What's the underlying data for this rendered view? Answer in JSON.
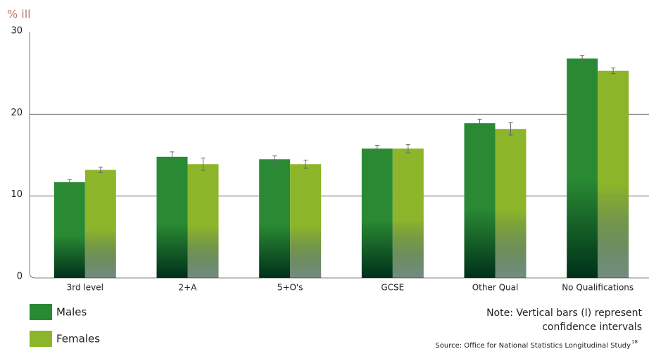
{
  "chart_data": {
    "type": "bar",
    "y_label": "% ill",
    "categories": [
      "3rd level",
      "2+A",
      "5+O's",
      "GCSE",
      "Other Qual",
      "No Qualifications"
    ],
    "series": [
      {
        "name": "Males",
        "color": "#2a8a34",
        "values": [
          11.7,
          14.8,
          14.5,
          15.8,
          18.9,
          26.8
        ],
        "errors": [
          0.3,
          0.6,
          0.4,
          0.4,
          0.5,
          0.4
        ]
      },
      {
        "name": "Females",
        "color": "#8db52a",
        "values": [
          13.2,
          13.9,
          13.9,
          15.8,
          18.2,
          25.3
        ],
        "errors": [
          0.35,
          0.75,
          0.5,
          0.5,
          0.75,
          0.35
        ]
      }
    ],
    "ylim": [
      0,
      30
    ],
    "yticks": [
      0,
      10,
      20,
      30
    ],
    "grid": true,
    "note": [
      "Note: Vertical bars (I) represent",
      "confidence intervals"
    ],
    "source": "Source: Office for National Statistics Longitudinal Study",
    "source_ref": "18"
  }
}
